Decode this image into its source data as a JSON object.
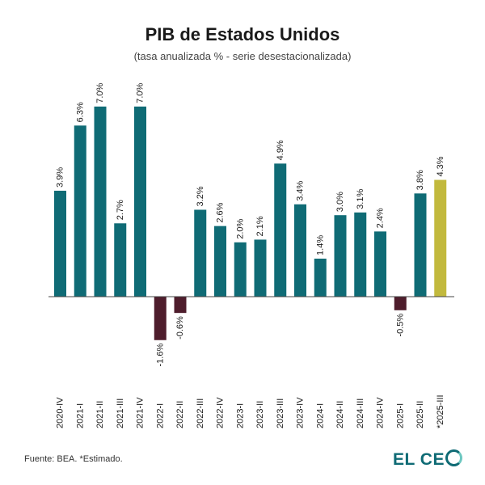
{
  "chart_data": {
    "type": "bar",
    "title": "PIB de Estados Unidos",
    "subtitle": "(tasa anualizada % - serie desestacionalizada)",
    "categories": [
      "2020-IV",
      "2021-I",
      "2021-II",
      "2021-III",
      "2021-IV",
      "2022-I",
      "2022-II",
      "2022-III",
      "2022-IV",
      "2023-I",
      "2023-II",
      "2023-III",
      "2023-IV",
      "2024-I",
      "2024-II",
      "2024-III",
      "2024-IV",
      "2025-I",
      "2025-II",
      "*2025-III"
    ],
    "values": [
      3.9,
      6.3,
      7.0,
      2.7,
      7.0,
      -1.6,
      -0.6,
      3.2,
      2.6,
      2.0,
      2.1,
      4.9,
      3.4,
      1.4,
      3.0,
      3.1,
      2.4,
      -0.5,
      3.8,
      4.3
    ],
    "data_labels": [
      "3.9%",
      "6.3%",
      "7.0%",
      "2.7%",
      "7.0%",
      "-1.6%",
      "-0.6%",
      "3.2%",
      "2.6%",
      "2.0%",
      "2.1%",
      "4.9%",
      "3.4%",
      "1.4%",
      "3.0%",
      "3.1%",
      "2.4%",
      "-0.5%",
      "3.8%",
      "4.3%"
    ],
    "estimated_index": 19,
    "grid": false,
    "colors": {
      "positive": "#0f6b75",
      "negative": "#4e1d2c",
      "estimated": "#c2b93d"
    }
  },
  "footer": {
    "source": "Fuente: BEA. *Estimado.",
    "logo_text": "EL CEO"
  }
}
